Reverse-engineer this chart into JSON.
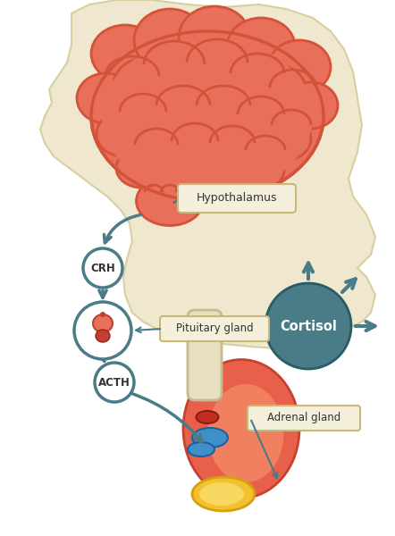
{
  "bg_color": "#ffffff",
  "head_color": "#f0e8ce",
  "head_edge": "#d8cfa0",
  "brain_color": "#e8705a",
  "brain_dark": "#d4513a",
  "stem_color": "#e8705a",
  "hypo_label": "Hypothalamus",
  "hypo_bg": "#f5f0dc",
  "hypo_border": "#c8b87a",
  "crh_label": "CRH",
  "acth_label": "ACTH",
  "pit_label": "Pituitary gland",
  "adrenal_label": "Adrenal gland",
  "cortisol_label": "Cortisol",
  "arrow_color": "#4a7c87",
  "circle_edge": "#4a7c87",
  "circle_fill": "#ffffff",
  "cortisol_fill": "#4a7c87",
  "kidney_color": "#e8604a",
  "kidney_dark": "#c84030",
  "adrenal_color": "#f5c030",
  "adrenal_dark": "#d4a010",
  "ureter_color": "#e8dfc0",
  "ureter_edge": "#c8b890",
  "blue_vessel": "#4090c8",
  "red_vessel": "#c03020",
  "label_bg": "#f5f0dc",
  "label_edge": "#c8b87a",
  "text_dark": "#333333",
  "text_white": "#ffffff"
}
